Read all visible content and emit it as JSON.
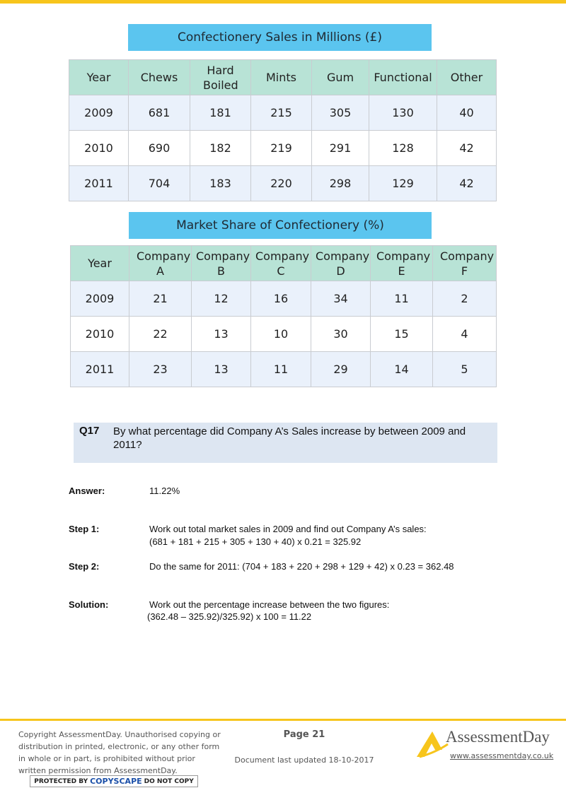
{
  "sales_table": {
    "title": "Confectionery Sales in Millions (£)",
    "headers": [
      "Year",
      "Chews",
      "Hard Boiled",
      "Mints",
      "Gum",
      "Functional",
      "Other"
    ],
    "rows": [
      [
        "2009",
        "681",
        "181",
        "215",
        "305",
        "130",
        "40"
      ],
      [
        "2010",
        "690",
        "182",
        "219",
        "291",
        "128",
        "42"
      ],
      [
        "2011",
        "704",
        "183",
        "220",
        "298",
        "129",
        "42"
      ]
    ]
  },
  "share_table": {
    "title": "Market Share of Confectionery (%)",
    "headers": [
      "Year",
      "Company A",
      "Company B",
      "Company C",
      "Company D",
      "Company E",
      "Company F"
    ],
    "rows": [
      [
        "2009",
        "21",
        "12",
        "16",
        "34",
        "11",
        "2"
      ],
      [
        "2010",
        "22",
        "13",
        "10",
        "30",
        "15",
        "4"
      ],
      [
        "2011",
        "23",
        "13",
        "11",
        "29",
        "14",
        "5"
      ]
    ]
  },
  "question": {
    "number": "Q17",
    "text": "By what percentage did Company A’s Sales increase by between 2009 and 2011?"
  },
  "answer": {
    "label": "Answer:",
    "value": "11.22%"
  },
  "step1": {
    "label": "Step 1:",
    "line1": "Work out total market sales in 2009 and find out Company A’s sales:",
    "line2": "(681 + 181 + 215 + 305 + 130 + 40) x 0.21 = 325.92"
  },
  "step2": {
    "label": "Step 2:",
    "line1": "Do the same for 2011: (704 + 183 + 220 + 298 + 129 + 42) x 0.23 = 362.48"
  },
  "solution": {
    "label": "Solution:",
    "line1": "Work out the percentage increase between the two figures:",
    "line2": "(362.48 – 325.92)/325.92) x 100 = 11.22"
  },
  "footer": {
    "copyright": "Copyright AssessmentDay. Unauthorised copying or distribution in printed, electronic, or any other form in whole or in part, is prohibited without prior written permission from AssessmentDay.",
    "copyscape_prefix": "PROTECTED BY",
    "copyscape_brand": "COPYSCAPE",
    "copyscape_suffix": "DO NOT COPY",
    "page": "Page 21",
    "updated": "Document last updated 18-10-2017",
    "brand": "AssessmentDay",
    "url": "www.assessmentday.co.uk"
  },
  "colors": {
    "accent": "#f7c51c",
    "title_box": "#5bc5ef",
    "header_row": "#b8e3d6",
    "stripe_row": "#eaf1fb",
    "question_box": "#dde6f2"
  }
}
